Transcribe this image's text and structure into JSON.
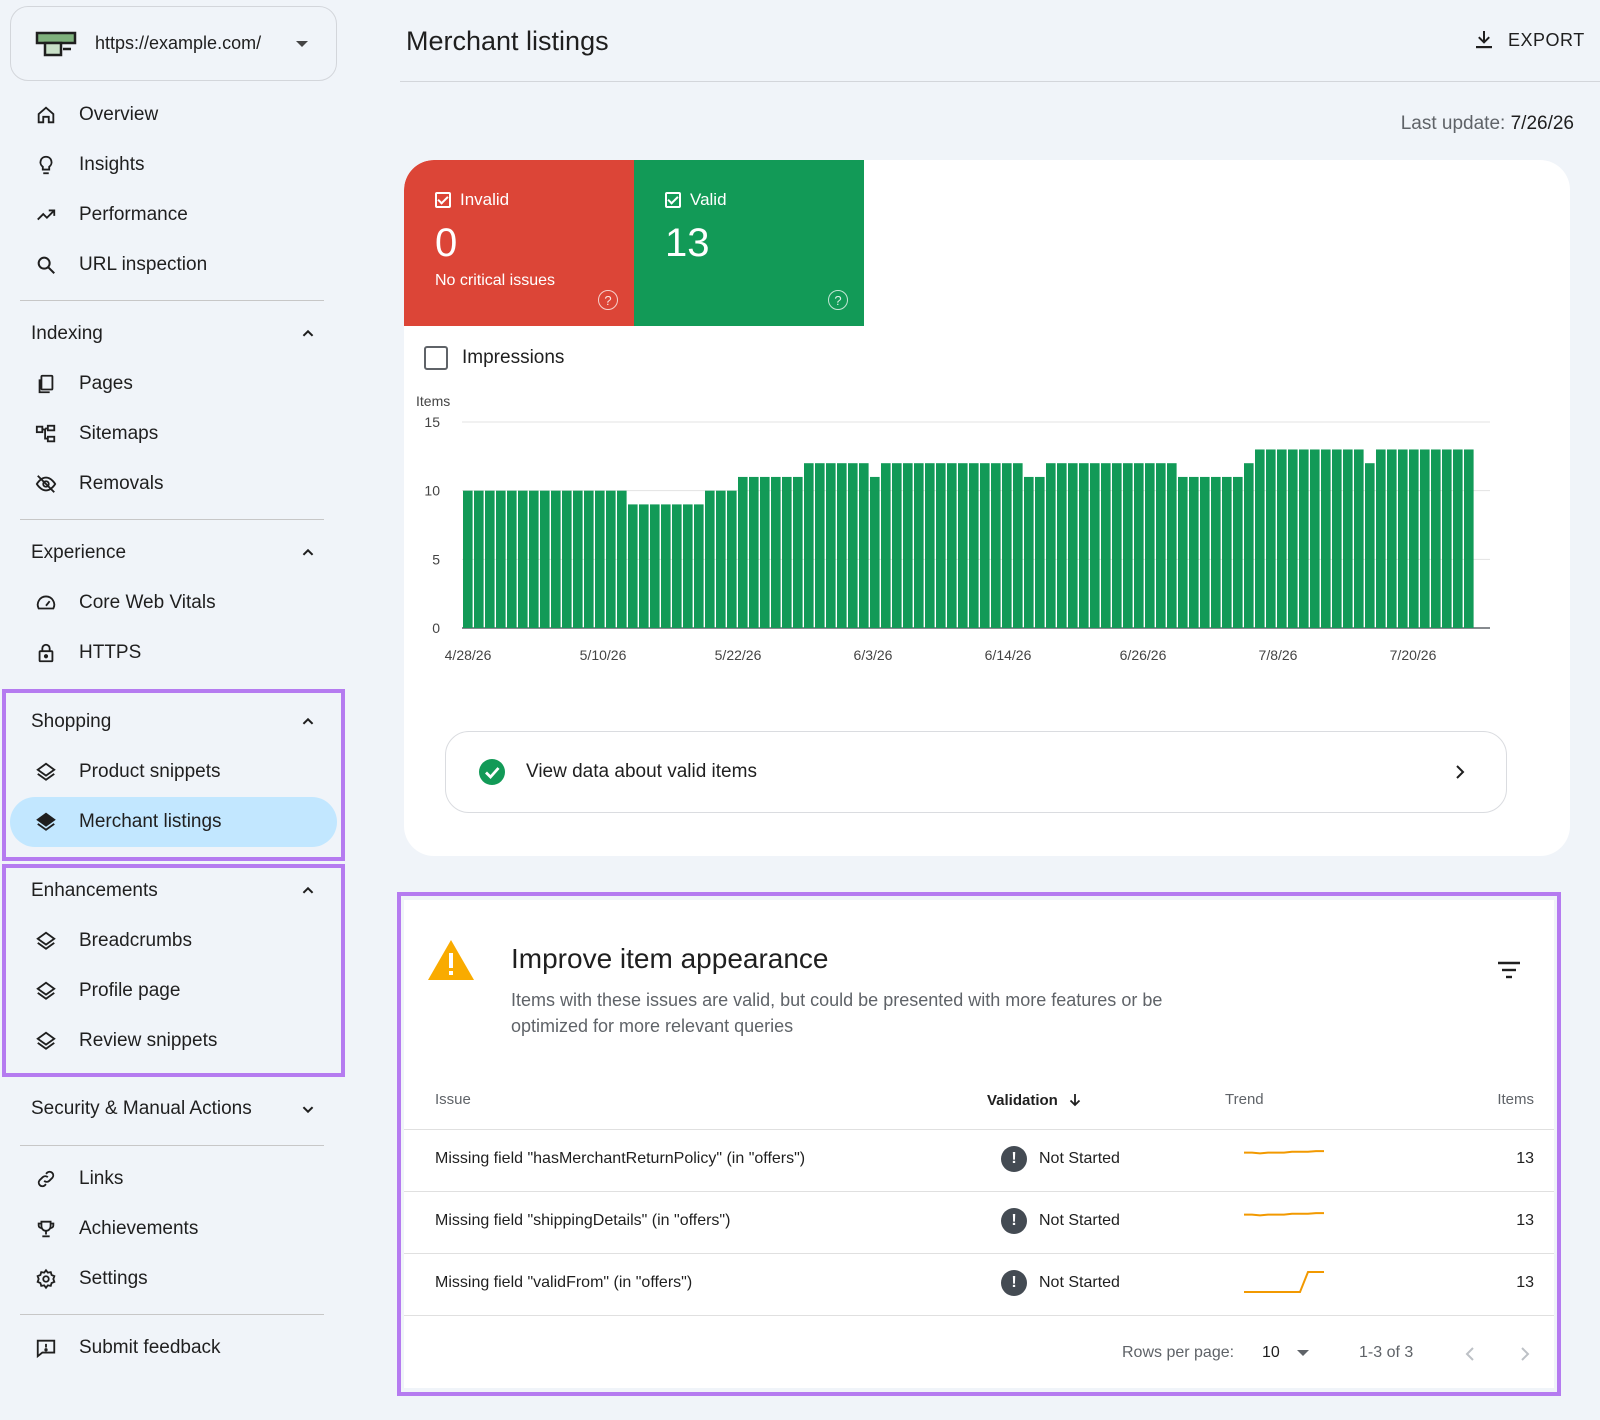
{
  "property": {
    "url": "https://example.com/"
  },
  "nav": {
    "top": [
      {
        "label": "Overview",
        "icon": "home-icon"
      },
      {
        "label": "Insights",
        "icon": "lightbulb-icon"
      },
      {
        "label": "Performance",
        "icon": "trending-up-icon"
      },
      {
        "label": "URL inspection",
        "icon": "search-icon"
      }
    ],
    "indexing": {
      "title": "Indexing",
      "items": [
        {
          "label": "Pages",
          "icon": "pages-icon"
        },
        {
          "label": "Sitemaps",
          "icon": "sitemap-icon"
        },
        {
          "label": "Removals",
          "icon": "eye-off-icon"
        }
      ]
    },
    "experience": {
      "title": "Experience",
      "items": [
        {
          "label": "Core Web Vitals",
          "icon": "gauge-icon"
        },
        {
          "label": "HTTPS",
          "icon": "lock-icon"
        }
      ]
    },
    "shopping": {
      "title": "Shopping",
      "items": [
        {
          "label": "Product snippets",
          "icon": "layers-icon"
        },
        {
          "label": "Merchant listings",
          "icon": "layers-filled-icon"
        }
      ]
    },
    "enhancements": {
      "title": "Enhancements",
      "items": [
        {
          "label": "Breadcrumbs",
          "icon": "layers-icon"
        },
        {
          "label": "Profile page",
          "icon": "layers-icon"
        },
        {
          "label": "Review snippets",
          "icon": "layers-icon"
        }
      ]
    },
    "security": {
      "title": "Security & Manual Actions"
    },
    "bottom": [
      {
        "label": "Links",
        "icon": "link-icon"
      },
      {
        "label": "Achievements",
        "icon": "trophy-icon"
      },
      {
        "label": "Settings",
        "icon": "gear-icon"
      }
    ],
    "feedback": {
      "label": "Submit feedback",
      "icon": "feedback-icon"
    }
  },
  "header": {
    "title": "Merchant listings",
    "export_label": "EXPORT",
    "last_update_label": "Last update:",
    "last_update_value": "7/26/26"
  },
  "summary": {
    "invalid": {
      "label": "Invalid",
      "value": "0",
      "sub": "No critical issues",
      "color": "#dc4537"
    },
    "valid": {
      "label": "Valid",
      "value": "13",
      "color": "#129a57"
    },
    "impressions_label": "Impressions",
    "view_valid_label": "View data about valid items"
  },
  "chart_data": {
    "type": "bar",
    "ylabel": "Items",
    "ylim": [
      0,
      15
    ],
    "yticks": [
      0,
      5,
      10,
      15
    ],
    "xtick_labels": [
      "4/28/26",
      "5/10/26",
      "5/22/26",
      "6/3/26",
      "6/14/26",
      "6/26/26",
      "7/8/26",
      "7/20/26"
    ],
    "grid": true,
    "bar_color": "#129a57",
    "series": [
      {
        "values": [
          10,
          10,
          10,
          10,
          10,
          10,
          10,
          10,
          10,
          10,
          10,
          10,
          10,
          10,
          10,
          9,
          9,
          9,
          9,
          9,
          9,
          9,
          10,
          10,
          10,
          11,
          11,
          11,
          11,
          11,
          11,
          12,
          12,
          12,
          12,
          12,
          12,
          11,
          12,
          12,
          12,
          12,
          12,
          12,
          12,
          12,
          12,
          12,
          12,
          12,
          12,
          11,
          11,
          12,
          12,
          12,
          12,
          12,
          12,
          12,
          12,
          12,
          12,
          12,
          12,
          11,
          11,
          11,
          11,
          11,
          11,
          12,
          13,
          13,
          13,
          13,
          13,
          13,
          13,
          13,
          13,
          13,
          12,
          13,
          13,
          13,
          13,
          13,
          13,
          13,
          13,
          13
        ]
      }
    ]
  },
  "improve": {
    "title": "Improve item appearance",
    "description": "Items with these issues are valid, but could be presented with more features or be optimized for more relevant queries",
    "columns": {
      "issue": "Issue",
      "validation": "Validation",
      "trend": "Trend",
      "items": "Items"
    },
    "rows": [
      {
        "issue": "Missing field \"hasMerchantReturnPolicy\" (in \"offers\")",
        "validation": "Not Started",
        "items": "13",
        "trend": [
          10,
          10,
          9.5,
          10,
          10,
          10,
          10.5,
          10.5,
          10.5,
          11,
          11
        ]
      },
      {
        "issue": "Missing field \"shippingDetails\" (in \"offers\")",
        "validation": "Not Started",
        "items": "13",
        "trend": [
          10,
          10,
          9.5,
          10,
          10,
          10,
          10.5,
          10.5,
          10.5,
          11,
          11
        ]
      },
      {
        "issue": "Missing field \"validFrom\" (in \"offers\")",
        "validation": "Not Started",
        "items": "13",
        "trend": [
          0,
          0,
          0,
          0,
          0,
          0,
          0,
          0,
          13,
          13,
          13
        ]
      }
    ],
    "trend_color": "#f29900",
    "pagination": {
      "rows_per_page_label": "Rows per page:",
      "rows_per_page": "10",
      "range": "1-3 of 3"
    }
  },
  "highlight_color": "#b57bf0"
}
